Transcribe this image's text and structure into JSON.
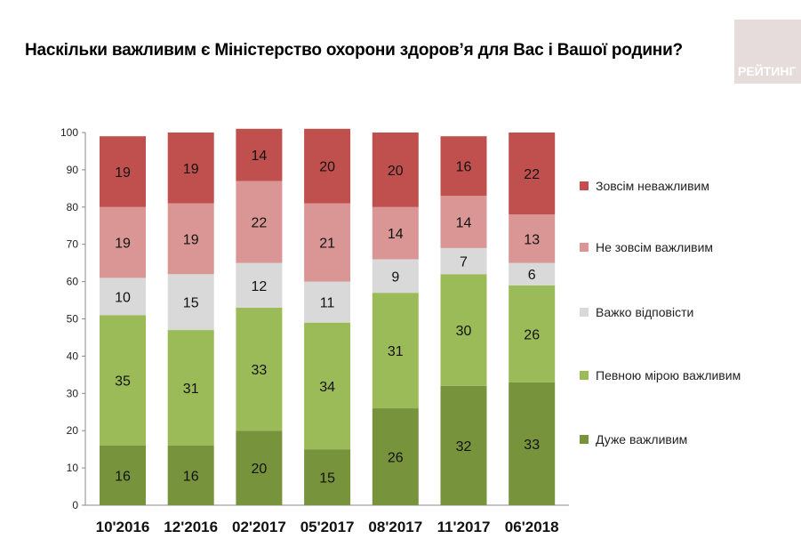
{
  "title": "Наскільки важливим є Міністерство охорони здоров’я для Вас і Вашої родини?",
  "logo": "РЕЙТИНГ",
  "chart_data": {
    "type": "bar",
    "stacked": true,
    "title": "Наскільки важливим є Міністерство охорони здоров’я для Вас і Вашої родини?",
    "categories": [
      "10'2016",
      "12'2016",
      "02'2017",
      "05'2017",
      "08'2017",
      "11'2017",
      "06'2018"
    ],
    "ylim": [
      0,
      100
    ],
    "yticks": [
      0,
      10,
      20,
      30,
      40,
      50,
      60,
      70,
      80,
      90,
      100
    ],
    "legend_position": "right",
    "series": [
      {
        "name": "Дуже важливим",
        "color": "#77933c",
        "values": [
          16,
          16,
          20,
          15,
          26,
          32,
          33
        ]
      },
      {
        "name": "Певною мірою важливим",
        "color": "#9bbb59",
        "values": [
          35,
          31,
          33,
          34,
          31,
          30,
          26
        ]
      },
      {
        "name": "Важко відповісти",
        "color": "#d9d9d9",
        "values": [
          10,
          15,
          12,
          11,
          9,
          7,
          6
        ]
      },
      {
        "name": "Не зовсім важливим",
        "color": "#d99694",
        "values": [
          19,
          19,
          22,
          21,
          14,
          14,
          13
        ]
      },
      {
        "name": "Зовсім неважливим",
        "color": "#c0504d",
        "values": [
          19,
          19,
          14,
          20,
          20,
          16,
          22
        ]
      }
    ]
  }
}
